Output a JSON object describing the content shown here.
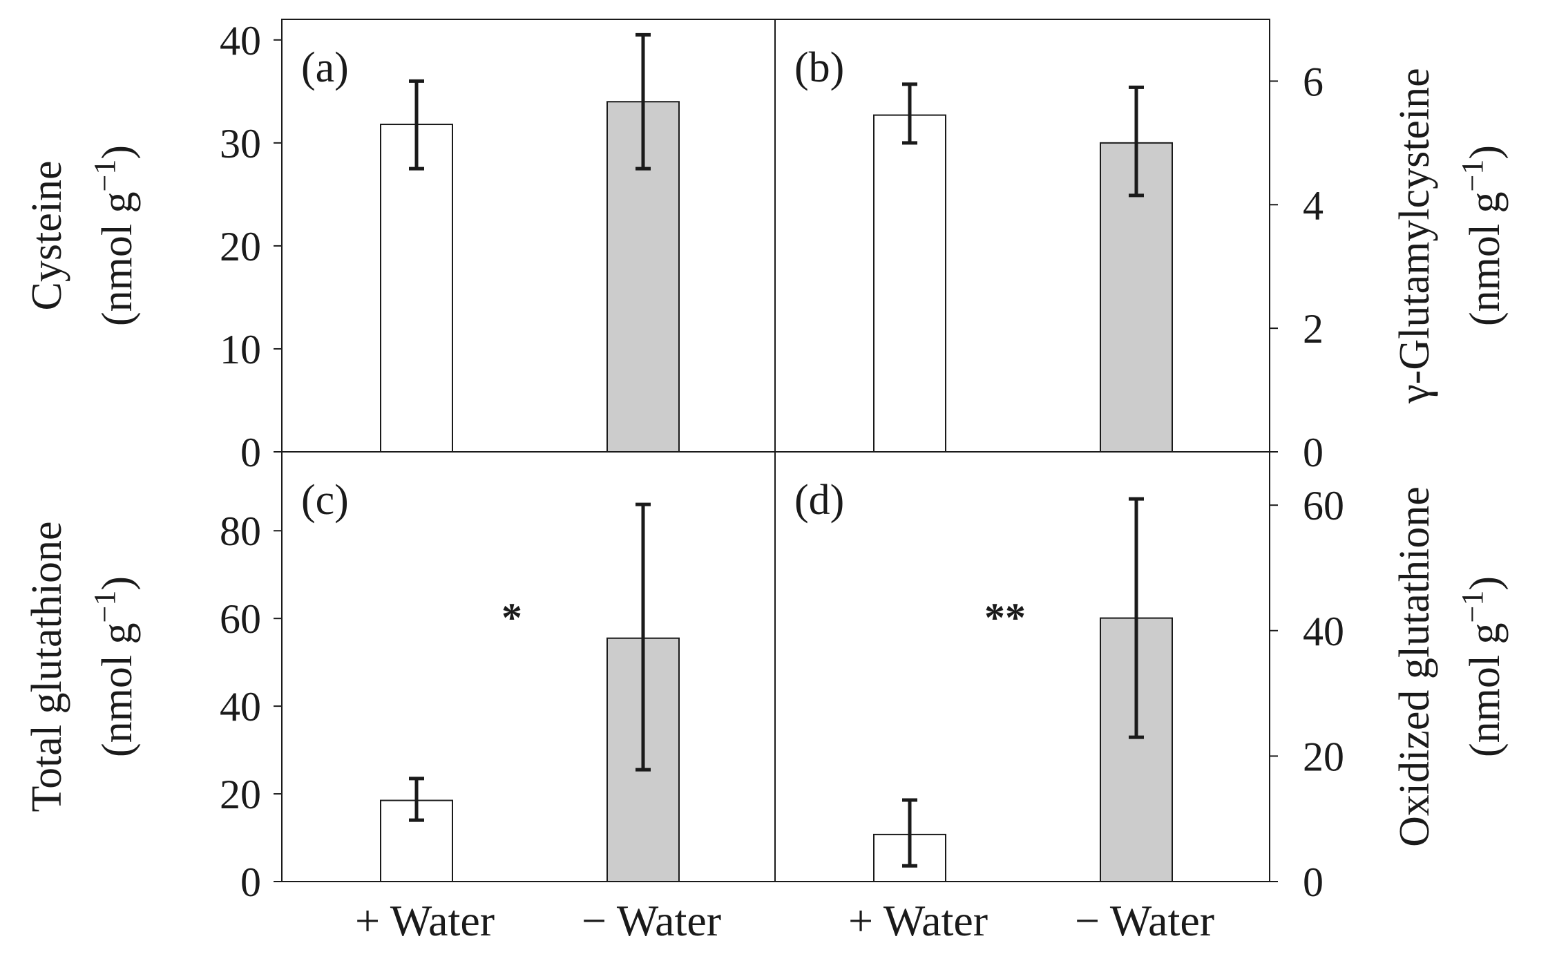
{
  "categories_display": [
    "+ Water",
    "− Water"
  ],
  "chart_data": [
    {
      "id": "a",
      "type": "bar",
      "panel_label": "(a)",
      "categories": [
        "+ Water",
        "− Water"
      ],
      "values": [
        31.8,
        34.0
      ],
      "error_low": [
        27.5,
        27.5
      ],
      "error_high": [
        36.0,
        40.5
      ],
      "colors": [
        "#ffffff",
        "#cccccc"
      ],
      "ylabel_line1": "Cysteine",
      "ylabel_line2": "(nmol g",
      "ylabel_sup": "−1",
      "ylabel_close": ")",
      "ylim": [
        0,
        42
      ],
      "yticks": [
        0,
        10,
        20,
        30,
        40
      ],
      "axis_side": "left",
      "significance": ""
    },
    {
      "id": "b",
      "type": "bar",
      "panel_label": "(b)",
      "categories": [
        "+ Water",
        "− Water"
      ],
      "values": [
        5.45,
        5.0
      ],
      "error_low": [
        5.0,
        4.15
      ],
      "error_high": [
        5.95,
        5.9
      ],
      "colors": [
        "#ffffff",
        "#cccccc"
      ],
      "ylabel_line1": "γ-Glutamylcysteine",
      "ylabel_line2": "(nmol g",
      "ylabel_sup": "−1",
      "ylabel_close": ")",
      "ylim": [
        0,
        7
      ],
      "yticks": [
        0,
        2,
        4,
        6
      ],
      "axis_side": "right",
      "significance": ""
    },
    {
      "id": "c",
      "type": "bar",
      "panel_label": "(c)",
      "categories": [
        "+ Water",
        "− Water"
      ],
      "values": [
        18.5,
        55.5
      ],
      "error_low": [
        14.0,
        25.5
      ],
      "error_high": [
        23.5,
        86.0
      ],
      "colors": [
        "#ffffff",
        "#cccccc"
      ],
      "ylabel_line1": "Total glutathione",
      "ylabel_line2": "(nmol g",
      "ylabel_sup": "−1",
      "ylabel_close": ")",
      "ylim": [
        0,
        98
      ],
      "yticks": [
        0,
        20,
        40,
        60,
        80
      ],
      "axis_side": "left",
      "significance": "*"
    },
    {
      "id": "d",
      "type": "bar",
      "panel_label": "(d)",
      "categories": [
        "+ Water",
        "− Water"
      ],
      "values": [
        7.5,
        42.0
      ],
      "error_low": [
        2.5,
        23.0
      ],
      "error_high": [
        13.0,
        61.0
      ],
      "colors": [
        "#ffffff",
        "#cccccc"
      ],
      "ylabel_line1": "Oxidized glutathione",
      "ylabel_line2": "(nmol g",
      "ylabel_sup": "−1",
      "ylabel_close": ")",
      "ylim": [
        0,
        68.5
      ],
      "yticks": [
        0,
        20,
        40,
        60
      ],
      "axis_side": "right",
      "significance": "**"
    }
  ]
}
